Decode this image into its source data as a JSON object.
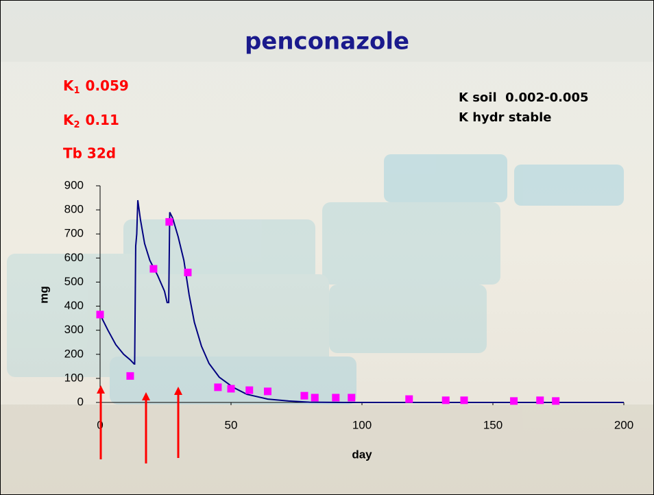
{
  "title": "penconazole",
  "left_notes": [
    {
      "symbol": "K",
      "subscript": "1",
      "value": "0.059"
    },
    {
      "symbol": "K",
      "subscript": "2",
      "value": "0.11"
    },
    {
      "symbol": "Tb 32d"
    }
  ],
  "right_notes": [
    "K soil  0.002-0.005",
    "K hydr stable"
  ],
  "chart_data": {
    "type": "line",
    "x_label": "day",
    "y_label": "mg",
    "xlim": [
      0,
      200
    ],
    "xticks": [
      0,
      50,
      100,
      150,
      200
    ],
    "ylim": [
      0,
      900
    ],
    "yticks": [
      0,
      100,
      200,
      300,
      400,
      500,
      600,
      700,
      800,
      900
    ],
    "series": [
      {
        "type": "line",
        "color": "#000080",
        "x": [
          0,
          3,
          6,
          9,
          11.5,
          13,
          13.2,
          13.6,
          14,
          14.4,
          15.4,
          17,
          19,
          22,
          24.6,
          25.6,
          26.2,
          26.6,
          27.7,
          29.8,
          32,
          34,
          36,
          38.7,
          41.6,
          45.5,
          50.8,
          56,
          64,
          72,
          80,
          93,
          200
        ],
        "values": [
          365,
          300,
          240,
          200,
          177,
          160,
          160,
          650,
          700,
          840,
          760,
          660,
          590,
          527,
          462,
          415,
          415,
          790,
          766,
          689,
          590,
          447,
          333,
          234,
          162,
          105,
          63,
          34,
          14,
          6,
          1,
          0,
          0
        ]
      },
      {
        "type": "scatter",
        "color": "#ff00ff",
        "x": [
          0,
          11.5,
          20.4,
          26.4,
          33.5,
          45,
          50,
          57,
          64,
          78,
          82,
          90,
          96,
          118,
          132,
          139,
          158,
          168,
          174
        ],
        "values": [
          365,
          110,
          555,
          750,
          540,
          63,
          57,
          51,
          46,
          28,
          20,
          20,
          20,
          14,
          9,
          9,
          6,
          9,
          6
        ]
      }
    ]
  }
}
